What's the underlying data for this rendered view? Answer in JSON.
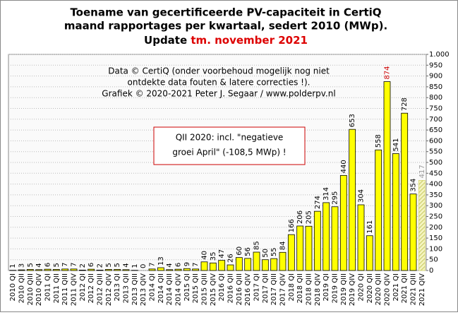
{
  "chart_data": {
    "type": "bar",
    "title_lines": [
      "Toename van gecertificeerde PV-capaciteit in CertiQ",
      "maand rapportages per kwartaal, sedert 2010 (MWp)."
    ],
    "update_prefix": "Update",
    "update_text": "tm. november 2021",
    "notes": [
      "Data © CertiQ (onder voorbehoud mogelijk  nog niet",
      "ontdekte data fouten & latere correcties !).",
      "Grafiek  © 2020-2021 Peter J. Segaar / www.polderpv.nl"
    ],
    "box_lines": [
      "QII 2020:  incl. \"negatieve",
      "groei April\"  (-108,5 MWp)  !"
    ],
    "categories": [
      "2010 QI",
      "2010 QII",
      "2010 QIII",
      "2010 QIV",
      "2011 QI",
      "2011 QII",
      "2011 QIII",
      "2011 QIV",
      "2012 QI",
      "2012 QII",
      "2012 QIII",
      "2012 QIV",
      "2013 QI",
      "2013 QII",
      "2013 QIII",
      "2013 QIV",
      "2014 QI",
      "2014 QII",
      "2014 QIII",
      "2014 QIV",
      "2015 QI",
      "2015 QII",
      "2015 QIII",
      "2015 QIV",
      "2016 QI",
      "2016 QII",
      "2016 QIII",
      "2016 QIV",
      "2017 QI",
      "2017 QII",
      "2017 QIII",
      "2017 QIV",
      "2018 QI",
      "2018 QII",
      "2018 QIII",
      "2018 QIV",
      "2019 QI",
      "2019 QII",
      "2019 QIII",
      "2019 QIV",
      "2020 QI",
      "2020 QII",
      "2020 QIII",
      "2020 QIV",
      "2021 QI",
      "2021 QII",
      "2021 QIII",
      "2021 QIV"
    ],
    "values": [
      1,
      3,
      5,
      4,
      6,
      5,
      7,
      7,
      2,
      6,
      2,
      5,
      5,
      4,
      1,
      0,
      7,
      13,
      4,
      6,
      9,
      7,
      40,
      35,
      47,
      26,
      60,
      56,
      85,
      50,
      55,
      84,
      166,
      206,
      205,
      274,
      314,
      295,
      440,
      653,
      304,
      161,
      558,
      874,
      541,
      728,
      354,
      417
    ],
    "color": "#ffff00",
    "highlight_index": 43,
    "highlight_label_color": "#cc0000",
    "estimate_index": 47,
    "estimate_color": "#d8d870",
    "estimate_label_color": "#999999",
    "ylim": [
      0,
      1000
    ],
    "yticks": [
      0,
      50,
      100,
      150,
      200,
      250,
      300,
      350,
      400,
      450,
      500,
      550,
      600,
      650,
      700,
      750,
      800,
      850,
      900,
      950,
      {
        "value": 1000,
        "label": "1.000"
      }
    ],
    "grid": true
  }
}
